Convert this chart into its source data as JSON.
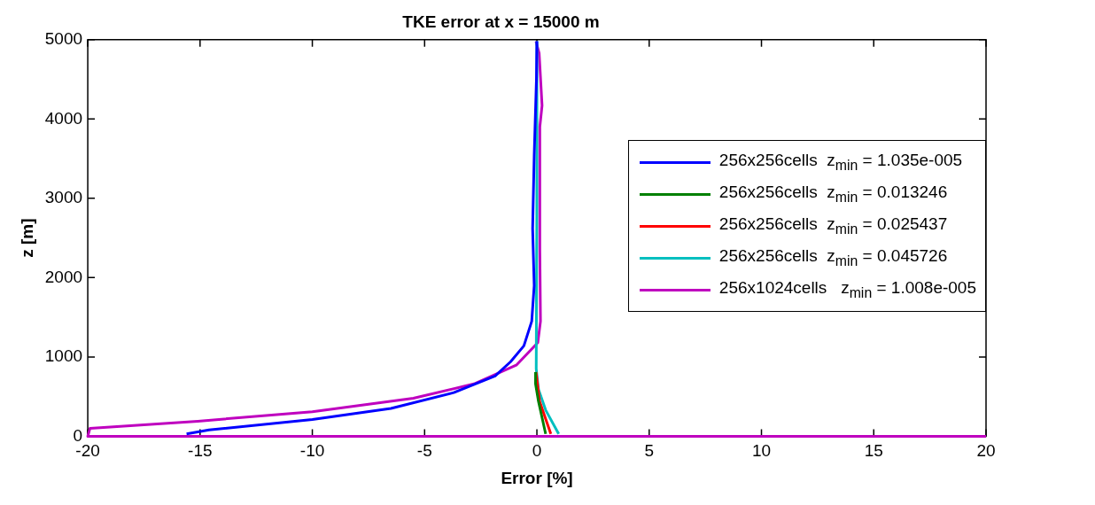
{
  "chart_data": {
    "type": "line",
    "title": "TKE error at x = 15000 m",
    "xlabel": "Error [%]",
    "ylabel": "z [m]",
    "xlim": [
      -20,
      20
    ],
    "xticks": [
      -20,
      -15,
      -10,
      -5,
      0,
      5,
      10,
      15,
      20
    ],
    "ylim": [
      0,
      5000
    ],
    "yticks": [
      0,
      1000,
      2000,
      3000,
      4000,
      5000
    ],
    "grid": false,
    "legend": "right",
    "marker": "none",
    "line_style": "solid",
    "series": [
      {
        "name": "256x256cells  z$_{min}$ = 1.035e-005",
        "color": "#0000ff",
        "x": [
          -15.6,
          -14.6,
          -10,
          -6.5,
          -3.7,
          -1.86,
          -1.17,
          -0.58,
          -0.23,
          -0.12,
          -0.19,
          -0.12,
          -0.02,
          0
        ],
        "values": [
          30,
          80,
          210,
          350,
          550,
          760,
          940,
          1140,
          1450,
          1900,
          2620,
          3540,
          4500,
          4980
        ]
      },
      {
        "name": "256x256cells  z$_{min}$ = 0.013246",
        "color": "#008000",
        "x": [
          0.39,
          0.07,
          -0.06,
          -0.06
        ],
        "values": [
          30,
          440,
          660,
          810
        ]
      },
      {
        "name": "256x256cells  z$_{min}$ = 0.025437",
        "color": "#ff0000",
        "x": [
          0.62,
          0.12,
          -0.04
        ],
        "values": [
          30,
          440,
          810
        ]
      },
      {
        "name": "256x256cells  z$_{min}$ = 0.045726",
        "color": "#00bfbf",
        "x": [
          0.97,
          0.39,
          0.07,
          -0.03,
          0,
          0
        ],
        "values": [
          30,
          330,
          590,
          850,
          3000,
          4980
        ]
      },
      {
        "name": "256x1024cells   z$_{min}$ = 1.008e-005",
        "color": "#bf00bf",
        "x": [
          20,
          -20,
          -19.9,
          -15.1,
          -10,
          -5.5,
          -2.8,
          -0.9,
          0.04,
          0.16,
          0.13,
          0.13,
          0.23,
          0.1,
          -0.04
        ],
        "values": [
          0,
          0,
          100,
          190,
          310,
          480,
          660,
          900,
          1180,
          1450,
          2360,
          3900,
          4170,
          4830,
          4980
        ]
      }
    ]
  }
}
